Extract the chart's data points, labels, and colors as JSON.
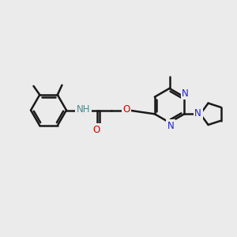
{
  "bg_color": "#ebebeb",
  "bond_color": "#1a1a1a",
  "bond_width": 1.8,
  "N_color": "#2020cc",
  "O_color": "#cc0000",
  "H_color": "#4a8a8a",
  "font_size": 8.5,
  "figsize": [
    3.0,
    3.0
  ],
  "dpi": 100,
  "xlim": [
    0,
    10
  ],
  "ylim": [
    0,
    10
  ]
}
